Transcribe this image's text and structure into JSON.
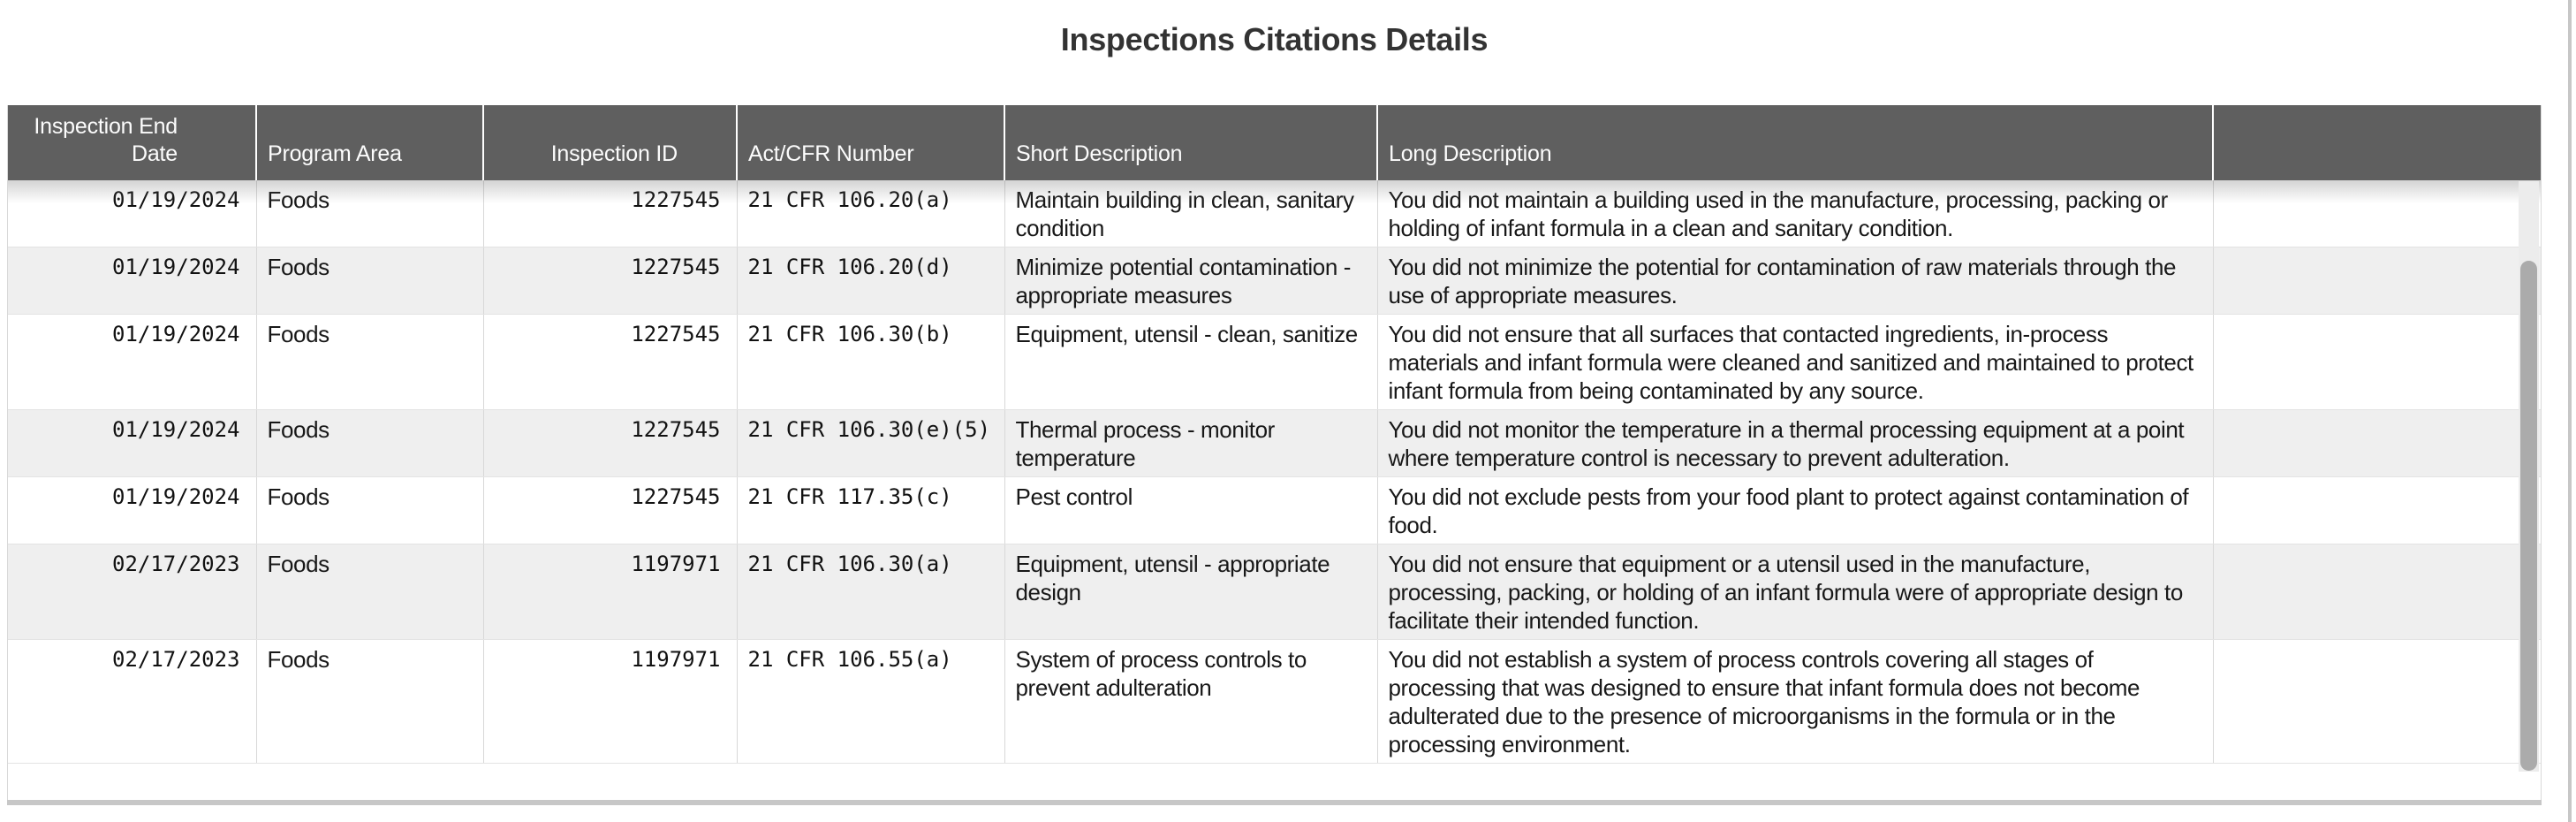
{
  "page": {
    "title": "Inspections Citations Details"
  },
  "table": {
    "columns": [
      "Inspection End Date",
      "Program Area",
      "Inspection ID",
      "Act/CFR Number",
      "Short Description",
      "Long Description",
      ""
    ],
    "rows": [
      {
        "end_date": "01/19/2024",
        "program_area": "Foods",
        "inspection_id": "1227545",
        "cfr": "21 CFR 106.20(a)",
        "short_description": "Maintain building in clean, sanitary condition",
        "long_description": "You did not maintain a building used in the manufacture, processing, packing or holding of infant formula in a clean and sanitary condition."
      },
      {
        "end_date": "01/19/2024",
        "program_area": "Foods",
        "inspection_id": "1227545",
        "cfr": "21 CFR 106.20(d)",
        "short_description": "Minimize potential contamination - appropriate measures",
        "long_description": "You did not minimize the potential for contamination of raw materials through the use of appropriate measures."
      },
      {
        "end_date": "01/19/2024",
        "program_area": "Foods",
        "inspection_id": "1227545",
        "cfr": "21 CFR 106.30(b)",
        "short_description": "Equipment, utensil - clean, sanitize",
        "long_description": "You did not ensure that all surfaces that contacted ingredients, in-process materials and infant formula were cleaned and sanitized and maintained to protect infant formula from being contaminated by any source."
      },
      {
        "end_date": "01/19/2024",
        "program_area": "Foods",
        "inspection_id": "1227545",
        "cfr": "21 CFR 106.30(e)(5)",
        "short_description": "Thermal process - monitor temperature",
        "long_description": "You did not monitor the temperature in a thermal processing equipment at a point where temperature control is necessary to prevent adulteration."
      },
      {
        "end_date": "01/19/2024",
        "program_area": "Foods",
        "inspection_id": "1227545",
        "cfr": "21 CFR 117.35(c)",
        "short_description": "Pest control",
        "long_description": "You did not exclude pests from your food plant to protect against contamination of food."
      },
      {
        "end_date": "02/17/2023",
        "program_area": "Foods",
        "inspection_id": "1197971",
        "cfr": "21 CFR 106.30(a)",
        "short_description": "Equipment, utensil - appropriate design",
        "long_description": "You did not ensure that equipment or a utensil used in the manufacture, processing, packing, or holding of an infant formula were of appropriate design to facilitate their intended function."
      },
      {
        "end_date": "02/17/2023",
        "program_area": "Foods",
        "inspection_id": "1197971",
        "cfr": "21 CFR 106.55(a)",
        "short_description": "System of process controls to prevent adulteration",
        "long_description": "You did not establish a system of process controls covering all stages of processing that was designed to ensure that infant formula does not become adulterated due to the presence of microorganisms in the formula or in the processing environment."
      }
    ]
  }
}
